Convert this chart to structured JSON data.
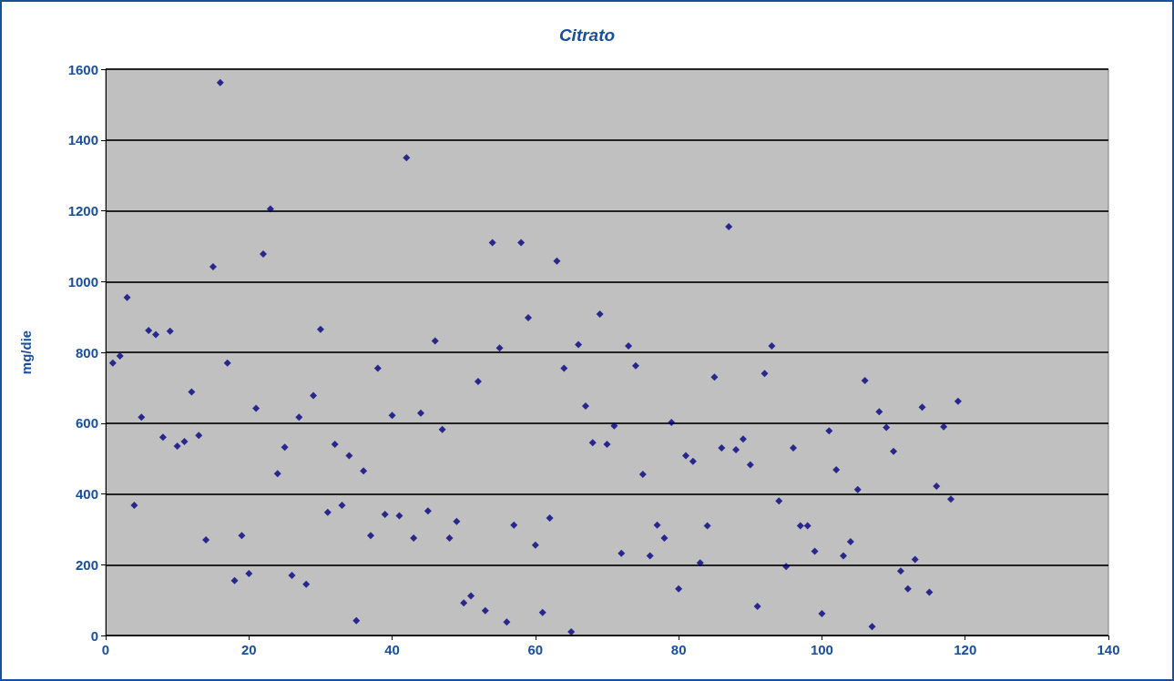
{
  "chart_data": {
    "type": "scatter",
    "title": "Citrato",
    "ylabel": "mg/die",
    "x": [
      1,
      2,
      3,
      4,
      5,
      6,
      7,
      8,
      9,
      10,
      11,
      12,
      13,
      14,
      15,
      16,
      17,
      18,
      19,
      20,
      21,
      22,
      23,
      24,
      25,
      26,
      27,
      28,
      29,
      30,
      31,
      32,
      33,
      34,
      35,
      36,
      37,
      38,
      39,
      40,
      41,
      42,
      43,
      44,
      45,
      46,
      47,
      48,
      49,
      50,
      51,
      52,
      53,
      54,
      55,
      56,
      57,
      58,
      59,
      60,
      61,
      62,
      63,
      64,
      65,
      66,
      67,
      68,
      69,
      70,
      71,
      72,
      73,
      74,
      75,
      76,
      77,
      78,
      79,
      80,
      81,
      82,
      83,
      84,
      85,
      86,
      87,
      88,
      89,
      90,
      91,
      92,
      93,
      94,
      95,
      96,
      97,
      98,
      99,
      100,
      101,
      102,
      103,
      104,
      105,
      106,
      107,
      108,
      109,
      110,
      111,
      112,
      113,
      114,
      115,
      116,
      117,
      118,
      119
    ],
    "values": [
      770,
      790,
      955,
      368,
      617,
      862,
      850,
      560,
      860,
      535,
      548,
      688,
      565,
      270,
      1042,
      1562,
      770,
      155,
      282,
      175,
      642,
      1078,
      1205,
      457,
      532,
      170,
      617,
      145,
      678,
      865,
      348,
      540,
      368,
      508,
      42,
      465,
      282,
      755,
      342,
      622,
      338,
      1350,
      275,
      628,
      352,
      832,
      582,
      275,
      322,
      92,
      112,
      718,
      70,
      1110,
      812,
      38,
      312,
      1110,
      898,
      255,
      65,
      332,
      1058,
      755,
      10,
      822,
      648,
      545,
      908,
      540,
      592,
      232,
      818,
      762,
      455,
      225,
      312,
      275,
      602,
      132,
      508,
      492,
      205,
      310,
      730,
      530,
      1155,
      525,
      555,
      482,
      82,
      740,
      818,
      380,
      195,
      530,
      310,
      310,
      238,
      62,
      578,
      468,
      225,
      265,
      412,
      720,
      25,
      632,
      588,
      520,
      182,
      132,
      215,
      645,
      122,
      422,
      590,
      385,
      662
    ],
    "color": "#000080",
    "marker": "diamond",
    "xlim": [
      0,
      140
    ],
    "xticks": [
      0,
      20,
      40,
      60,
      80,
      100,
      120,
      140
    ],
    "ylim": [
      0,
      1600
    ],
    "yticks": [
      0,
      200,
      400,
      600,
      800,
      1000,
      1200,
      1400,
      1600
    ],
    "grid": "y"
  }
}
